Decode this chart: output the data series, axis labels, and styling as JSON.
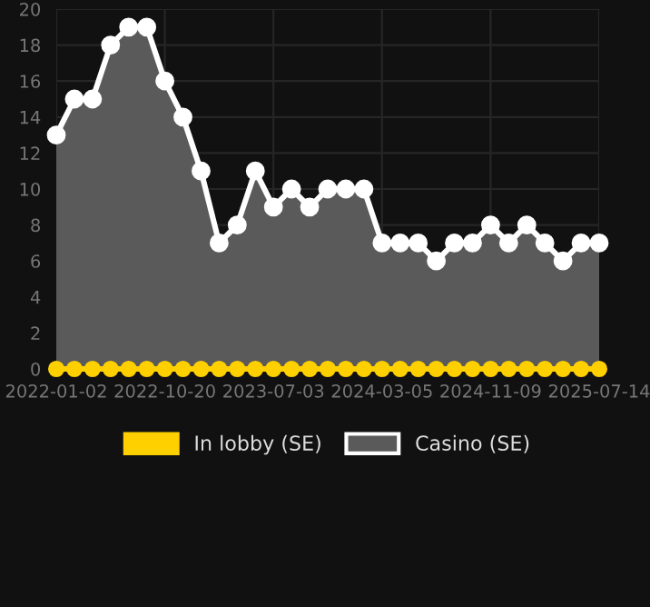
{
  "chart_data": {
    "type": "area",
    "categories": [
      "2022-01-02",
      null,
      null,
      null,
      null,
      null,
      "2022-10-20",
      null,
      null,
      null,
      null,
      null,
      "2023-07-03",
      null,
      null,
      null,
      null,
      null,
      "2024-03-05",
      null,
      null,
      null,
      null,
      null,
      "2024-11-09",
      null,
      null,
      null,
      null,
      null,
      "2025-07-14"
    ],
    "series": [
      {
        "name": "In lobby (SE)",
        "type": "line",
        "color": "#ffd000",
        "values": [
          0,
          0,
          0,
          0,
          0,
          0,
          0,
          0,
          0,
          0,
          0,
          0,
          0,
          0,
          0,
          0,
          0,
          0,
          0,
          0,
          0,
          0,
          0,
          0,
          0,
          0,
          0,
          0,
          0,
          0,
          0
        ]
      },
      {
        "name": "Casino (SE)",
        "color": "#ffffff",
        "values": [
          13,
          15,
          15,
          18,
          19,
          19,
          16,
          14,
          11,
          7,
          8,
          11,
          9,
          10,
          9,
          10,
          10,
          10,
          7,
          7,
          7,
          6,
          7,
          7,
          8,
          7,
          8,
          7,
          6,
          7,
          7
        ]
      }
    ],
    "ylim": [
      0,
      20
    ],
    "yticks": [
      0,
      2,
      4,
      6,
      8,
      10,
      12,
      14,
      16,
      18,
      20
    ],
    "grid": true,
    "legend": "bottom",
    "marker": "circle",
    "line_style": "solid"
  }
}
